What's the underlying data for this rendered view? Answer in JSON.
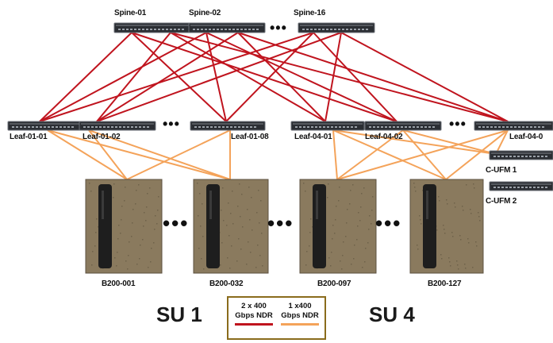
{
  "colors": {
    "spine_link": "#c0141e",
    "leaf_link": "#f4a35a",
    "legend_border": "#8a6c1c",
    "node_body": "#8a7a5e"
  },
  "spines": [
    {
      "id": "spine-01",
      "label": "Spine-01"
    },
    {
      "id": "spine-02",
      "label": "Spine-02"
    },
    {
      "id": "spine-16",
      "label": "Spine-16"
    }
  ],
  "spine_ellipsis": "•••",
  "leaves": [
    {
      "id": "leaf-01-01",
      "label": "Leaf-01-01"
    },
    {
      "id": "leaf-01-02",
      "label": "Leaf-01-02"
    },
    {
      "id": "leaf-01-08",
      "label": "Leaf-01-08"
    },
    {
      "id": "leaf-04-01",
      "label": "Leaf-04-01"
    },
    {
      "id": "leaf-04-02",
      "label": "Leaf-04-02"
    },
    {
      "id": "leaf-04-0x",
      "label": "Leaf-04-0"
    }
  ],
  "leaf_ellipsis": "•••",
  "ufm": [
    {
      "id": "c-ufm-1",
      "label": "C-UFM 1"
    },
    {
      "id": "c-ufm-2",
      "label": "C-UFM 2"
    }
  ],
  "nodes": [
    {
      "id": "b200-001",
      "label": "B200-001"
    },
    {
      "id": "b200-032",
      "label": "B200-032"
    },
    {
      "id": "b200-097",
      "label": "B200-097"
    },
    {
      "id": "b200-127",
      "label": "B200-127"
    }
  ],
  "node_ellipsis": "•••",
  "scalable_units": [
    {
      "id": "su-1",
      "label": "SU 1"
    },
    {
      "id": "su-4",
      "label": "SU 4"
    }
  ],
  "legend": {
    "spine_link_label": "2 x 400\nGbps NDR",
    "leaf_link_label": "1 x400\nGbps NDR"
  }
}
